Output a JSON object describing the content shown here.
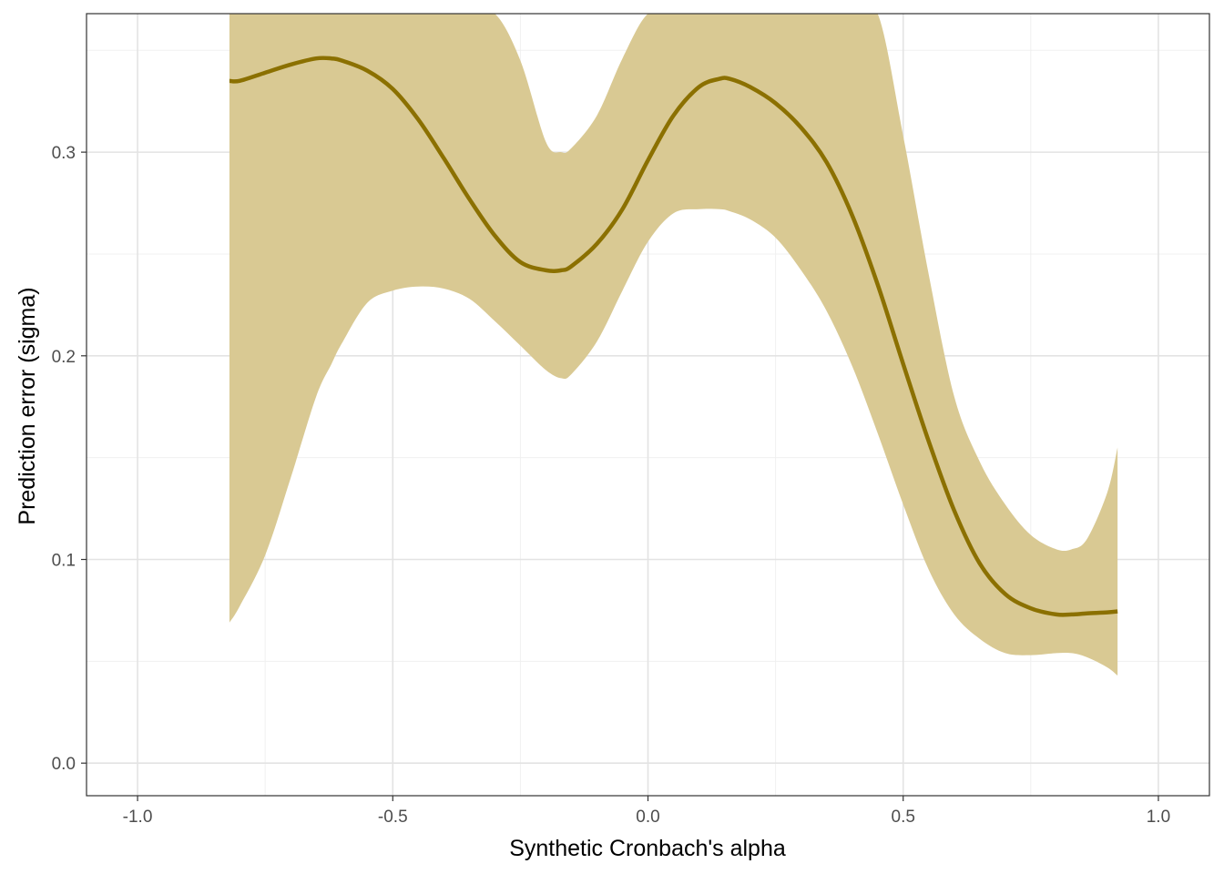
{
  "chart_data": {
    "type": "line",
    "xlabel": "Synthetic Cronbach's alpha",
    "ylabel": "Prediction error (sigma)",
    "xlim": [
      -1.1,
      1.1
    ],
    "ylim": [
      -0.016,
      0.368
    ],
    "x_ticks": [
      -1.0,
      -0.5,
      0.0,
      0.5,
      1.0
    ],
    "x_tick_labels": [
      "-1.0",
      "-0.5",
      "0.0",
      "0.5",
      "1.0"
    ],
    "y_ticks": [
      0.0,
      0.1,
      0.2,
      0.3
    ],
    "y_tick_labels": [
      "0.0",
      "0.1",
      "0.2",
      "0.3"
    ],
    "grid": true,
    "legend": "none",
    "colors": {
      "line": "#8B7000",
      "ribbon": "#D9C993",
      "panel_border": "#333333",
      "grid_major": "#E3E3E3",
      "grid_minor": "#F0F0F0"
    },
    "series": [
      {
        "x": [
          -0.82,
          -0.8,
          -0.75,
          -0.7,
          -0.65,
          -0.62,
          -0.6,
          -0.55,
          -0.5,
          -0.45,
          -0.4,
          -0.35,
          -0.3,
          -0.25,
          -0.2,
          -0.17,
          -0.15,
          -0.1,
          -0.05,
          0.0,
          0.05,
          0.1,
          0.14,
          0.16,
          0.2,
          0.25,
          0.3,
          0.35,
          0.4,
          0.45,
          0.5,
          0.55,
          0.6,
          0.65,
          0.7,
          0.75,
          0.8,
          0.83,
          0.86,
          0.9,
          0.92
        ],
        "y": [
          0.335,
          0.335,
          0.339,
          0.343,
          0.346,
          0.346,
          0.345,
          0.34,
          0.331,
          0.316,
          0.297,
          0.277,
          0.259,
          0.246,
          0.242,
          0.242,
          0.244,
          0.255,
          0.272,
          0.296,
          0.318,
          0.332,
          0.336,
          0.336,
          0.332,
          0.324,
          0.312,
          0.295,
          0.269,
          0.235,
          0.196,
          0.158,
          0.124,
          0.098,
          0.083,
          0.076,
          0.073,
          0.073,
          0.0735,
          0.074,
          0.0745
        ],
        "lower": [
          0.069,
          0.077,
          0.102,
          0.14,
          0.18,
          0.196,
          0.206,
          0.226,
          0.232,
          0.234,
          0.233,
          0.228,
          0.217,
          0.205,
          0.193,
          0.189,
          0.191,
          0.207,
          0.232,
          0.256,
          0.27,
          0.272,
          0.272,
          0.271,
          0.267,
          0.258,
          0.242,
          0.222,
          0.195,
          0.162,
          0.127,
          0.095,
          0.073,
          0.061,
          0.054,
          0.053,
          0.054,
          0.054,
          0.052,
          0.047,
          0.043
        ],
        "upper": [
          0.368,
          0.368,
          0.368,
          0.368,
          0.368,
          0.368,
          0.368,
          0.368,
          0.368,
          0.368,
          0.368,
          0.368,
          0.368,
          0.345,
          0.305,
          0.3,
          0.302,
          0.318,
          0.346,
          0.368,
          0.368,
          0.368,
          0.368,
          0.368,
          0.368,
          0.368,
          0.368,
          0.368,
          0.368,
          0.368,
          0.308,
          0.24,
          0.18,
          0.148,
          0.127,
          0.112,
          0.105,
          0.105,
          0.11,
          0.133,
          0.155
        ]
      }
    ]
  }
}
